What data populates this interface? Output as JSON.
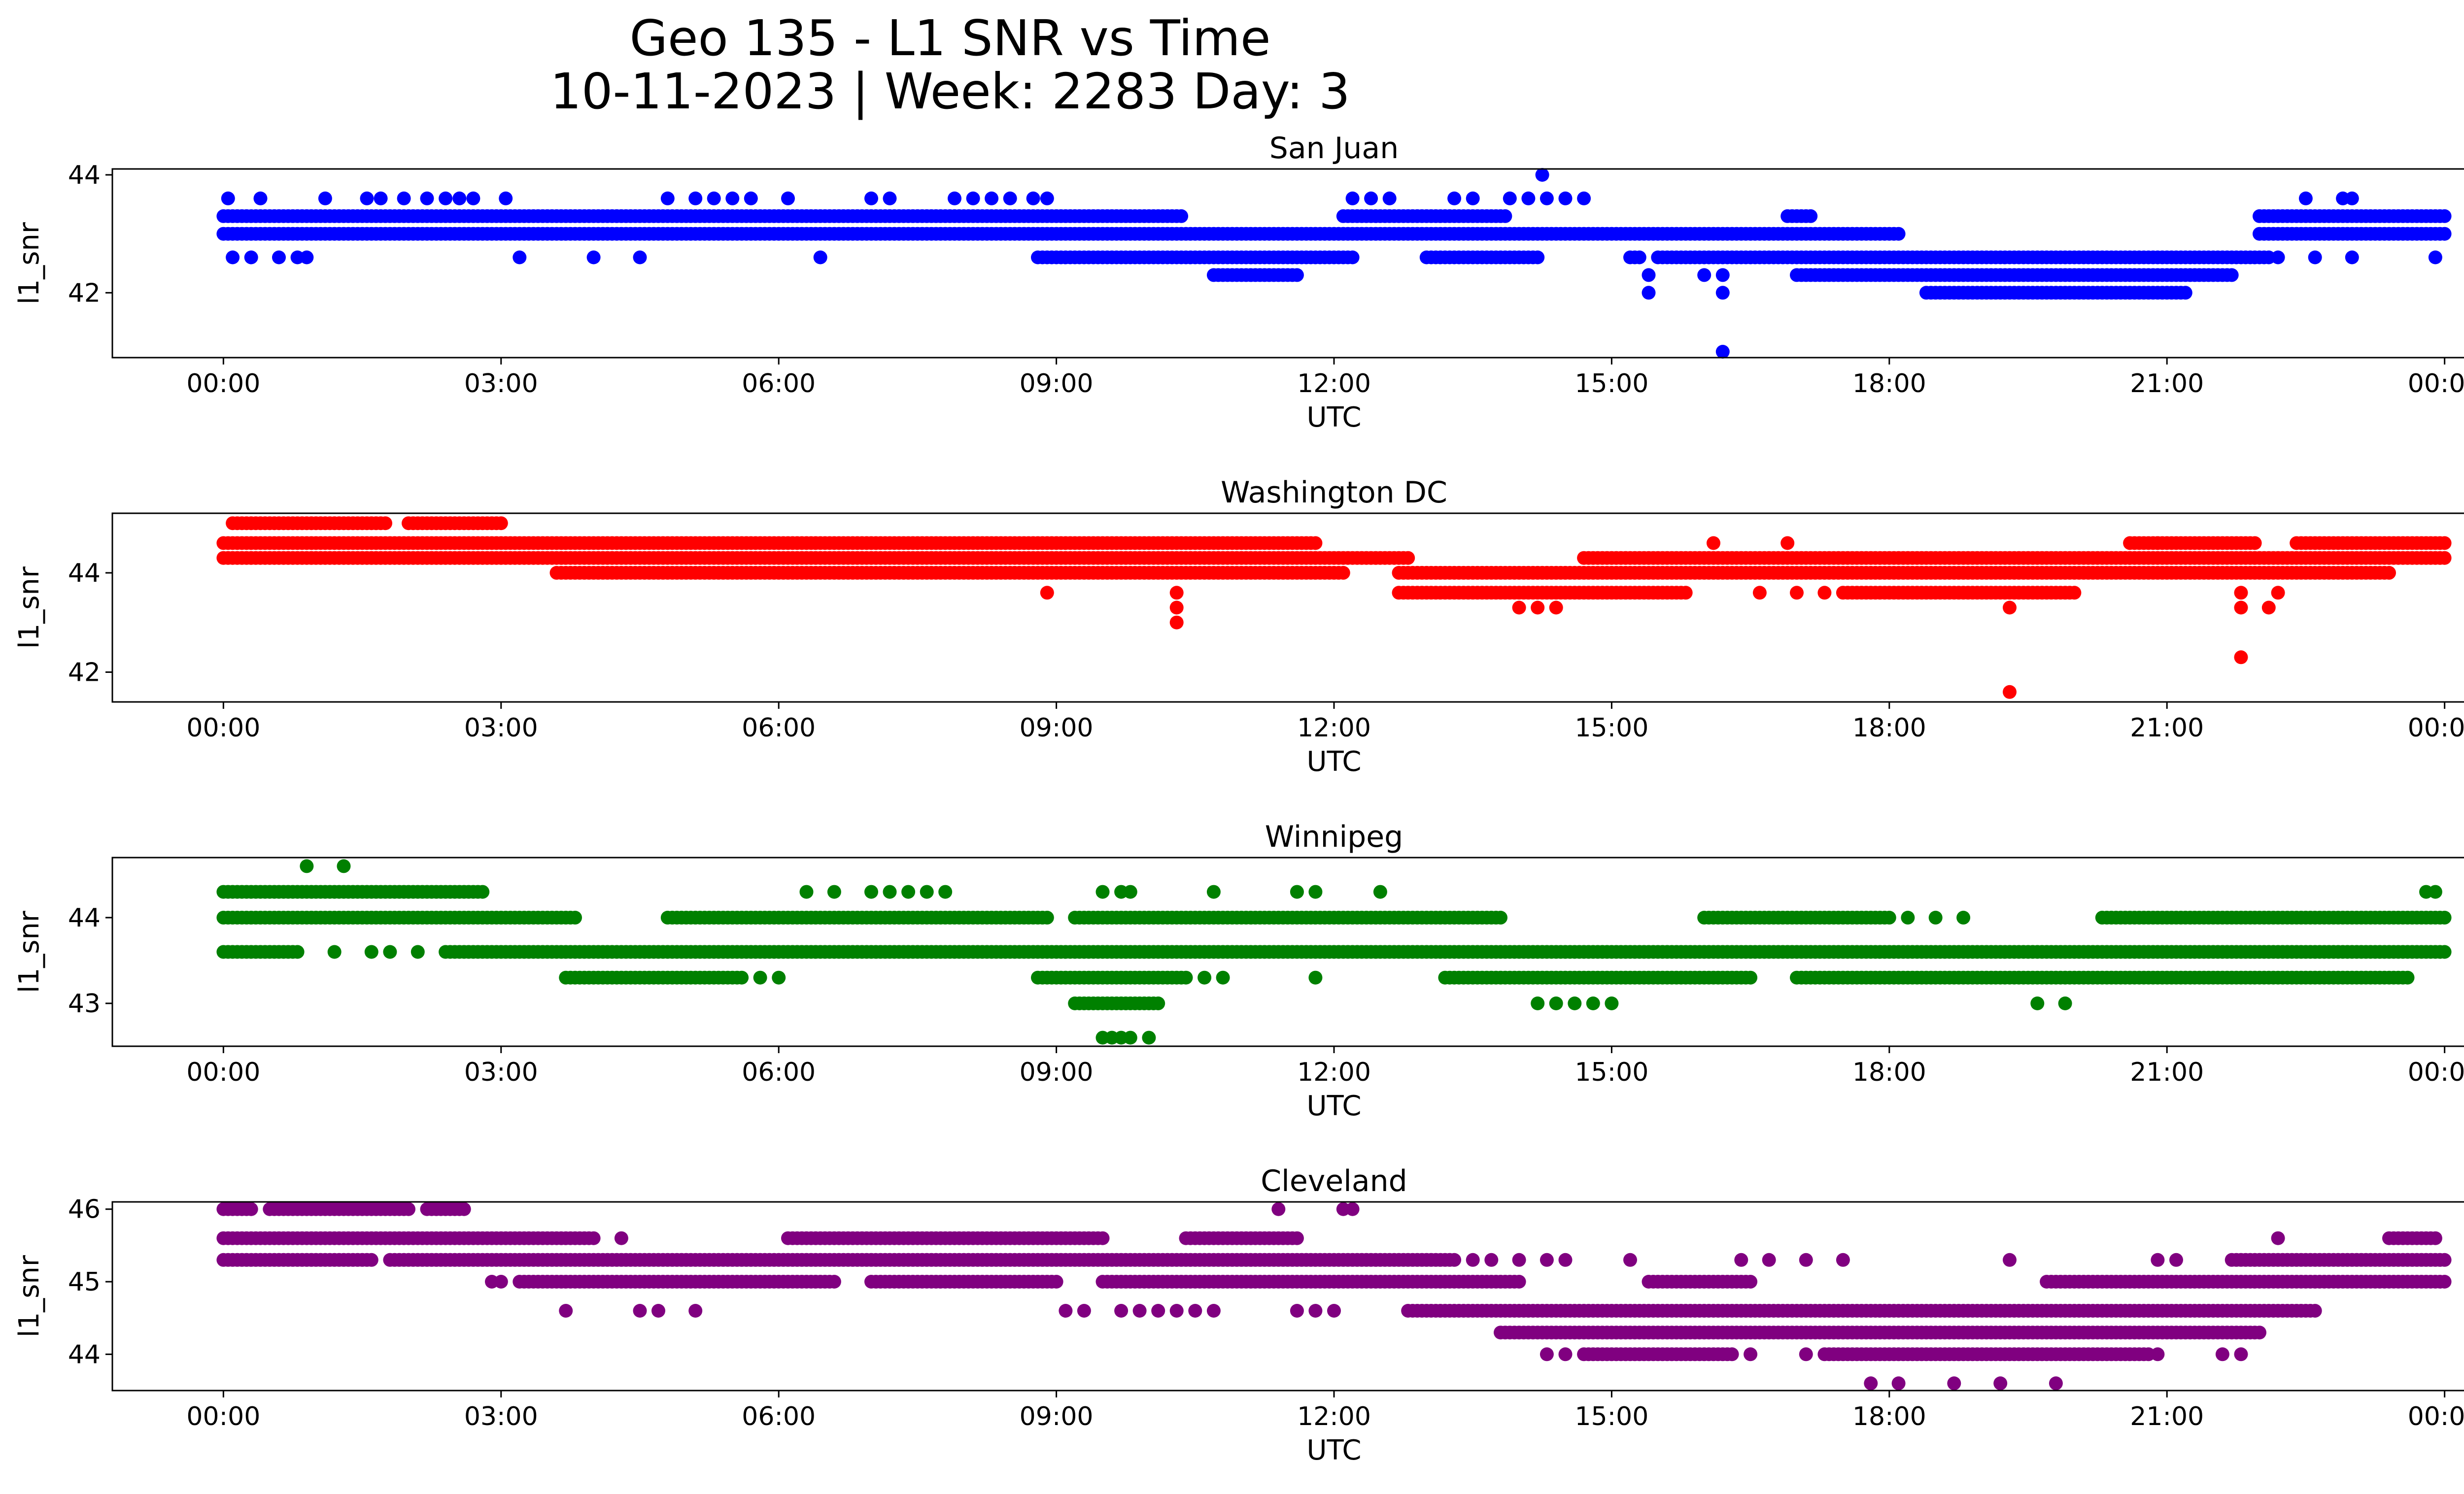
{
  "figure": {
    "title_line1": "Geo 135 - L1 SNR vs Time",
    "title_line2": "10-11-2023 | Week: 2283 Day: 3"
  },
  "chart_data": [
    {
      "type": "scatter",
      "title": "San Juan",
      "xlabel": "UTC",
      "ylabel": "l1_snr",
      "color": "#0000ff",
      "xticks": [
        "00:00",
        "03:00",
        "06:00",
        "09:00",
        "12:00",
        "15:00",
        "18:00",
        "21:00",
        "00:00"
      ],
      "xlim": [
        -1.2,
        25.2
      ],
      "ylim": [
        40.9,
        44.1
      ],
      "yticks": [
        42,
        44
      ],
      "bands": [
        {
          "y": 43.3,
          "start": 0.0,
          "end": 24.0,
          "gaps": [
            [
              10.4,
              12.1
            ],
            [
              13.9,
              16.9
            ],
            [
              17.2,
              22.0
            ]
          ]
        },
        {
          "y": 43.0,
          "start": 0.0,
          "end": 18.1,
          "gaps": []
        },
        {
          "y": 43.0,
          "start": 22.0,
          "end": 24.0,
          "gaps": []
        },
        {
          "y": 42.6,
          "start": 8.8,
          "end": 12.2,
          "gaps": []
        },
        {
          "y": 42.6,
          "start": 13.0,
          "end": 14.2,
          "gaps": []
        },
        {
          "y": 42.6,
          "start": 15.2,
          "end": 22.1,
          "gaps": [
            [
              15.3,
              15.5
            ]
          ]
        },
        {
          "y": 42.3,
          "start": 10.7,
          "end": 11.6,
          "gaps": []
        },
        {
          "y": 42.3,
          "start": 17.0,
          "end": 21.7,
          "gaps": []
        },
        {
          "y": 42.0,
          "start": 18.4,
          "end": 21.2,
          "gaps": []
        }
      ],
      "points": [
        [
          0.05,
          43.6
        ],
        [
          0.4,
          43.6
        ],
        [
          1.1,
          43.6
        ],
        [
          1.55,
          43.6
        ],
        [
          1.7,
          43.6
        ],
        [
          1.95,
          43.6
        ],
        [
          2.2,
          43.6
        ],
        [
          2.4,
          43.6
        ],
        [
          2.55,
          43.6
        ],
        [
          2.7,
          43.6
        ],
        [
          3.05,
          43.6
        ],
        [
          4.8,
          43.6
        ],
        [
          5.1,
          43.6
        ],
        [
          5.3,
          43.6
        ],
        [
          5.5,
          43.6
        ],
        [
          5.7,
          43.6
        ],
        [
          6.1,
          43.6
        ],
        [
          7.0,
          43.6
        ],
        [
          7.2,
          43.6
        ],
        [
          7.9,
          43.6
        ],
        [
          8.1,
          43.6
        ],
        [
          8.3,
          43.6
        ],
        [
          8.5,
          43.6
        ],
        [
          8.75,
          43.6
        ],
        [
          8.9,
          43.6
        ],
        [
          12.2,
          43.6
        ],
        [
          12.4,
          43.6
        ],
        [
          12.6,
          43.6
        ],
        [
          13.3,
          43.6
        ],
        [
          13.5,
          43.6
        ],
        [
          13.9,
          43.6
        ],
        [
          14.1,
          43.6
        ],
        [
          14.25,
          44.0
        ],
        [
          14.3,
          43.6
        ],
        [
          14.5,
          43.6
        ],
        [
          14.7,
          43.6
        ],
        [
          22.5,
          43.6
        ],
        [
          22.9,
          43.6
        ],
        [
          23.0,
          43.6
        ],
        [
          0.1,
          42.6
        ],
        [
          0.3,
          42.6
        ],
        [
          0.6,
          42.6
        ],
        [
          0.8,
          42.6
        ],
        [
          0.9,
          42.6
        ],
        [
          3.2,
          42.6
        ],
        [
          4.0,
          42.6
        ],
        [
          4.5,
          42.6
        ],
        [
          6.45,
          42.6
        ],
        [
          15.4,
          42.3
        ],
        [
          15.4,
          42.0
        ],
        [
          16.0,
          42.3
        ],
        [
          16.2,
          42.3
        ],
        [
          16.2,
          42.0
        ],
        [
          16.2,
          41.0
        ],
        [
          22.2,
          42.6
        ],
        [
          22.6,
          42.6
        ],
        [
          23.0,
          42.6
        ],
        [
          23.9,
          42.6
        ]
      ]
    },
    {
      "type": "scatter",
      "title": "Washington DC",
      "xlabel": "UTC",
      "ylabel": "l1_snr",
      "color": "#ff0000",
      "xticks": [
        "00:00",
        "03:00",
        "06:00",
        "09:00",
        "12:00",
        "15:00",
        "18:00",
        "21:00",
        "00:00"
      ],
      "xlim": [
        -1.2,
        25.2
      ],
      "ylim": [
        41.4,
        45.2
      ],
      "yticks": [
        42,
        44
      ],
      "bands": [
        {
          "y": 45.0,
          "start": 0.1,
          "end": 3.0,
          "gaps": [
            [
              1.8,
              2.0
            ]
          ]
        },
        {
          "y": 44.6,
          "start": 0.0,
          "end": 11.8,
          "gaps": []
        },
        {
          "y": 44.6,
          "start": 20.6,
          "end": 24.0,
          "gaps": [
            [
              22.0,
              22.4
            ]
          ]
        },
        {
          "y": 44.3,
          "start": 0.0,
          "end": 12.8,
          "gaps": []
        },
        {
          "y": 44.3,
          "start": 14.7,
          "end": 24.0,
          "gaps": []
        },
        {
          "y": 44.0,
          "start": 3.6,
          "end": 12.1,
          "gaps": []
        },
        {
          "y": 44.0,
          "start": 12.7,
          "end": 23.4,
          "gaps": []
        },
        {
          "y": 43.6,
          "start": 12.7,
          "end": 15.8,
          "gaps": []
        },
        {
          "y": 43.6,
          "start": 17.5,
          "end": 20.0,
          "gaps": []
        }
      ],
      "points": [
        [
          8.9,
          43.6
        ],
        [
          10.3,
          43.6
        ],
        [
          10.3,
          43.3
        ],
        [
          10.3,
          43.0
        ],
        [
          14.0,
          43.3
        ],
        [
          14.2,
          43.3
        ],
        [
          14.4,
          43.3
        ],
        [
          16.6,
          43.6
        ],
        [
          17.0,
          43.6
        ],
        [
          17.3,
          43.6
        ],
        [
          19.3,
          43.3
        ],
        [
          19.3,
          41.6
        ],
        [
          21.8,
          43.6
        ],
        [
          21.8,
          43.3
        ],
        [
          21.8,
          42.3
        ],
        [
          22.1,
          43.3
        ],
        [
          22.2,
          43.6
        ],
        [
          16.1,
          44.6
        ],
        [
          16.9,
          44.6
        ],
        [
          20.9,
          44.6
        ]
      ]
    },
    {
      "type": "scatter",
      "title": "Winnipeg",
      "xlabel": "UTC",
      "ylabel": "l1_snr",
      "color": "#008000",
      "xticks": [
        "00:00",
        "03:00",
        "06:00",
        "09:00",
        "12:00",
        "15:00",
        "18:00",
        "21:00",
        "00:00"
      ],
      "xlim": [
        -1.2,
        25.2
      ],
      "ylim": [
        42.5,
        44.7
      ],
      "yticks": [
        43,
        44
      ],
      "bands": [
        {
          "y": 44.3,
          "start": 0.0,
          "end": 2.8,
          "gaps": []
        },
        {
          "y": 44.0,
          "start": 0.0,
          "end": 3.8,
          "gaps": []
        },
        {
          "y": 44.0,
          "start": 4.8,
          "end": 8.9,
          "gaps": []
        },
        {
          "y": 44.0,
          "start": 9.2,
          "end": 13.8,
          "gaps": []
        },
        {
          "y": 44.0,
          "start": 16.0,
          "end": 18.0,
          "gaps": []
        },
        {
          "y": 44.0,
          "start": 20.3,
          "end": 24.0,
          "gaps": []
        },
        {
          "y": 43.6,
          "start": 0.0,
          "end": 0.8,
          "gaps": []
        },
        {
          "y": 43.6,
          "start": 2.4,
          "end": 24.0,
          "gaps": []
        },
        {
          "y": 43.3,
          "start": 3.7,
          "end": 5.6,
          "gaps": []
        },
        {
          "y": 43.3,
          "start": 8.8,
          "end": 10.4,
          "gaps": []
        },
        {
          "y": 43.3,
          "start": 13.2,
          "end": 16.5,
          "gaps": []
        },
        {
          "y": 43.3,
          "start": 17.0,
          "end": 23.6,
          "gaps": []
        },
        {
          "y": 43.0,
          "start": 9.2,
          "end": 10.1,
          "gaps": []
        }
      ],
      "points": [
        [
          0.9,
          44.6
        ],
        [
          1.3,
          44.6
        ],
        [
          1.2,
          43.6
        ],
        [
          1.6,
          43.6
        ],
        [
          1.8,
          43.6
        ],
        [
          2.1,
          43.6
        ],
        [
          5.8,
          43.3
        ],
        [
          6.0,
          43.3
        ],
        [
          6.3,
          44.3
        ],
        [
          6.6,
          44.3
        ],
        [
          7.0,
          44.3
        ],
        [
          7.2,
          44.3
        ],
        [
          7.4,
          44.3
        ],
        [
          7.6,
          44.3
        ],
        [
          7.8,
          44.3
        ],
        [
          9.5,
          44.3
        ],
        [
          9.7,
          44.3
        ],
        [
          9.8,
          44.3
        ],
        [
          10.7,
          44.3
        ],
        [
          11.6,
          44.3
        ],
        [
          11.8,
          44.3
        ],
        [
          12.5,
          44.3
        ],
        [
          10.6,
          43.3
        ],
        [
          10.8,
          43.3
        ],
        [
          11.8,
          43.3
        ],
        [
          9.5,
          42.6
        ],
        [
          9.6,
          42.6
        ],
        [
          9.7,
          42.6
        ],
        [
          9.8,
          42.6
        ],
        [
          10.0,
          42.6
        ],
        [
          14.2,
          43.0
        ],
        [
          14.4,
          43.0
        ],
        [
          14.6,
          43.0
        ],
        [
          14.8,
          43.0
        ],
        [
          15.0,
          43.0
        ],
        [
          18.2,
          44.0
        ],
        [
          18.5,
          44.0
        ],
        [
          18.8,
          44.0
        ],
        [
          19.6,
          43.0
        ],
        [
          19.9,
          43.0
        ],
        [
          23.8,
          44.3
        ],
        [
          23.9,
          44.3
        ]
      ]
    },
    {
      "type": "scatter",
      "title": "Cleveland",
      "xlabel": "UTC",
      "ylabel": "l1_snr",
      "color": "#800080",
      "xticks": [
        "00:00",
        "03:00",
        "06:00",
        "09:00",
        "12:00",
        "15:00",
        "18:00",
        "21:00",
        "00:00"
      ],
      "xlim": [
        -1.2,
        25.2
      ],
      "ylim": [
        43.5,
        46.1
      ],
      "yticks": [
        44,
        45,
        46
      ],
      "bands": [
        {
          "y": 46.0,
          "start": 0.0,
          "end": 2.6,
          "gaps": [
            [
              0.3,
              0.45
            ],
            [
              2.05,
              2.2
            ]
          ]
        },
        {
          "y": 45.6,
          "start": 0.0,
          "end": 4.0,
          "gaps": []
        },
        {
          "y": 45.6,
          "start": 6.1,
          "end": 9.5,
          "gaps": []
        },
        {
          "y": 45.6,
          "start": 10.4,
          "end": 11.6,
          "gaps": []
        },
        {
          "y": 45.6,
          "start": 23.4,
          "end": 23.9,
          "gaps": []
        },
        {
          "y": 45.3,
          "start": 0.0,
          "end": 1.6,
          "gaps": []
        },
        {
          "y": 45.3,
          "start": 1.8,
          "end": 13.3,
          "gaps": []
        },
        {
          "y": 45.3,
          "start": 21.7,
          "end": 24.0,
          "gaps": []
        },
        {
          "y": 45.0,
          "start": 3.2,
          "end": 6.6,
          "gaps": []
        },
        {
          "y": 45.0,
          "start": 7.0,
          "end": 9.0,
          "gaps": []
        },
        {
          "y": 45.0,
          "start": 9.5,
          "end": 14.0,
          "gaps": []
        },
        {
          "y": 45.0,
          "start": 15.4,
          "end": 16.5,
          "gaps": []
        },
        {
          "y": 45.0,
          "start": 19.7,
          "end": 24.0,
          "gaps": []
        },
        {
          "y": 44.6,
          "start": 12.8,
          "end": 22.6,
          "gaps": []
        },
        {
          "y": 44.3,
          "start": 13.8,
          "end": 22.0,
          "gaps": []
        },
        {
          "y": 44.0,
          "start": 14.7,
          "end": 16.3,
          "gaps": []
        },
        {
          "y": 44.0,
          "start": 17.3,
          "end": 20.8,
          "gaps": []
        }
      ],
      "points": [
        [
          2.9,
          45.0
        ],
        [
          3.0,
          45.0
        ],
        [
          4.3,
          45.6
        ],
        [
          3.7,
          44.6
        ],
        [
          4.5,
          44.6
        ],
        [
          4.7,
          44.6
        ],
        [
          5.1,
          44.6
        ],
        [
          9.1,
          44.6
        ],
        [
          9.3,
          44.6
        ],
        [
          9.7,
          44.6
        ],
        [
          9.9,
          44.6
        ],
        [
          10.1,
          44.6
        ],
        [
          10.3,
          44.6
        ],
        [
          10.5,
          44.6
        ],
        [
          10.7,
          44.6
        ],
        [
          11.4,
          46.0
        ],
        [
          12.1,
          46.0
        ],
        [
          12.2,
          46.0
        ],
        [
          11.6,
          44.6
        ],
        [
          11.8,
          44.6
        ],
        [
          12.0,
          44.6
        ],
        [
          13.5,
          45.3
        ],
        [
          13.7,
          45.3
        ],
        [
          14.0,
          45.3
        ],
        [
          14.3,
          45.3
        ],
        [
          14.5,
          45.3
        ],
        [
          15.2,
          45.3
        ],
        [
          16.4,
          45.3
        ],
        [
          16.7,
          45.3
        ],
        [
          17.1,
          45.3
        ],
        [
          17.5,
          45.3
        ],
        [
          19.3,
          45.3
        ],
        [
          20.9,
          45.3
        ],
        [
          21.1,
          45.3
        ],
        [
          14.3,
          44.0
        ],
        [
          14.5,
          44.0
        ],
        [
          16.5,
          44.0
        ],
        [
          17.1,
          44.0
        ],
        [
          17.8,
          43.6
        ],
        [
          18.1,
          43.6
        ],
        [
          18.7,
          43.6
        ],
        [
          19.2,
          43.6
        ],
        [
          19.8,
          43.6
        ],
        [
          20.9,
          44.0
        ],
        [
          21.6,
          44.0
        ],
        [
          21.8,
          44.0
        ],
        [
          22.2,
          45.6
        ]
      ]
    }
  ]
}
